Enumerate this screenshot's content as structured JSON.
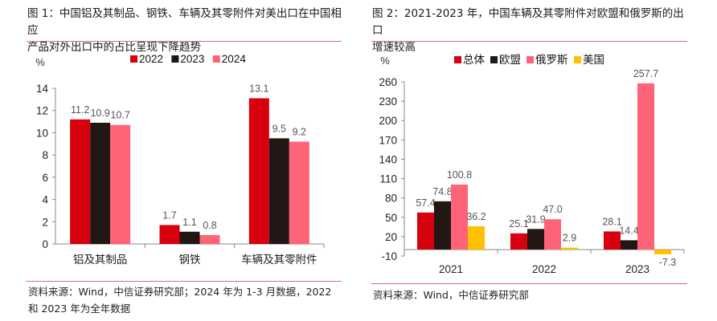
{
  "figure1": {
    "title_line1": "图 1：中国铝及其制品、钢铁、车辆及其零附件对美出口在中国相应",
    "title_line2": "产品对外出口中的占比呈现下降趋势",
    "source_line1": "资料来源：Wind，中信证券研究部；2024 年为 1-3 月数据，2022",
    "source_line2": "和 2023 年为全年数据"
  },
  "figure2": {
    "title_line1": "图 2：2021-2023 年，中国车辆及其零附件对欧盟和俄罗斯的出口",
    "title_line2": "增速较高",
    "source_line1": "资料来源：Wind，中信证券研究部"
  },
  "chart_data": [
    {
      "type": "bar",
      "ylabel": "%",
      "categories": [
        "铝及其制品",
        "钢铁",
        "车辆及其零附件"
      ],
      "series": [
        {
          "name": "2022",
          "color": "#d7000f",
          "values": [
            11.2,
            1.7,
            13.1
          ],
          "labels": [
            "11.2",
            "1.7",
            "13.1"
          ]
        },
        {
          "name": "2023",
          "color": "#221714",
          "values": [
            10.9,
            1.1,
            9.5
          ],
          "labels": [
            "10.9",
            "1.1",
            "9.5"
          ]
        },
        {
          "name": "2024",
          "color": "#ff6377",
          "values": [
            10.7,
            0.8,
            9.2
          ],
          "labels": [
            "10.7",
            "0.8",
            "9.2"
          ]
        }
      ],
      "ylim": [
        0,
        14
      ],
      "yticks": [
        "0",
        "2",
        "4",
        "6",
        "8",
        "10",
        "12",
        "14"
      ],
      "legend": "top",
      "grid": false
    },
    {
      "type": "bar",
      "ylabel": "%",
      "categories": [
        "2021",
        "2022",
        "2023"
      ],
      "series": [
        {
          "name": "总体",
          "color": "#d7000f",
          "values": [
            57.4,
            25.1,
            28.1
          ],
          "labels": [
            "57.4",
            "25.1",
            "28.1"
          ]
        },
        {
          "name": "欧盟",
          "color": "#221714",
          "values": [
            74.8,
            31.9,
            14.4
          ],
          "labels": [
            "74.8",
            "31.9",
            "14.4"
          ]
        },
        {
          "name": "俄罗斯",
          "color": "#ff6377",
          "values": [
            100.8,
            47.0,
            257.7
          ],
          "labels": [
            "100.8",
            "47.0",
            "257.7"
          ]
        },
        {
          "name": "美国",
          "color": "#ffc000",
          "values": [
            36.2,
            2.9,
            -7.3
          ],
          "labels": [
            "36.2",
            "2.9",
            "-7.3"
          ]
        }
      ],
      "ylim": [
        -10,
        260
      ],
      "yticks": [
        "-10",
        "20",
        "50",
        "80",
        "110",
        "140",
        "170",
        "200",
        "230",
        "260"
      ],
      "legend": "top",
      "grid": false
    }
  ]
}
